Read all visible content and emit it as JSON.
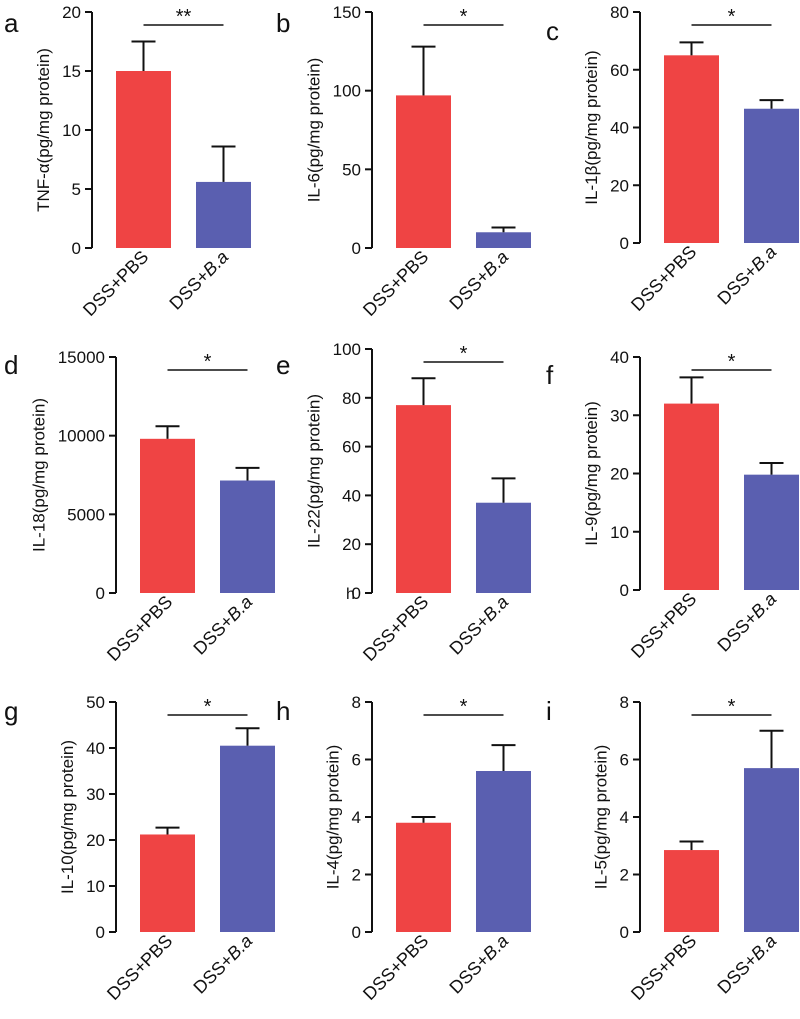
{
  "figure": {
    "bar_colors": {
      "DSS+PBS": "#ef4444",
      "DSS+B.a": "#5a5fb0"
    },
    "stray_labels": [
      {
        "panel": "e",
        "text": "h"
      }
    ]
  },
  "chart_data": [
    {
      "panel": "a",
      "type": "bar",
      "ylabel": "TNF-α(pg/mg protein)",
      "ylim": [
        0,
        20
      ],
      "yticks": [
        0,
        5,
        10,
        15,
        20
      ],
      "categories": [
        "DSS+PBS",
        "DSS+B.a"
      ],
      "values": [
        15.0,
        5.6
      ],
      "errors": [
        2.5,
        3.0
      ],
      "significance": "**"
    },
    {
      "panel": "b",
      "type": "bar",
      "ylabel": "IL-6(pg/mg protein)",
      "ylim": [
        0,
        150
      ],
      "yticks": [
        0,
        50,
        100,
        150
      ],
      "categories": [
        "DSS+PBS",
        "DSS+B.a"
      ],
      "values": [
        97,
        10
      ],
      "errors": [
        31,
        3
      ],
      "significance": "*"
    },
    {
      "panel": "c",
      "type": "bar",
      "ylabel": "IL-1β(pg/mg protein)",
      "ylim": [
        0,
        80
      ],
      "yticks": [
        0,
        20,
        40,
        60,
        80
      ],
      "categories": [
        "DSS+PBS",
        "DSS+B.a"
      ],
      "values": [
        65,
        46.5
      ],
      "errors": [
        4.5,
        3.0
      ],
      "significance": "*"
    },
    {
      "panel": "d",
      "type": "bar",
      "ylabel": "IL-18(pg/mg protein)",
      "ylim": [
        0,
        15000
      ],
      "yticks": [
        0,
        5000,
        10000,
        15000
      ],
      "categories": [
        "DSS+PBS",
        "DSS+B.a"
      ],
      "values": [
        9800,
        7150
      ],
      "errors": [
        800,
        800
      ],
      "significance": "*"
    },
    {
      "panel": "e",
      "type": "bar",
      "ylabel": "IL-22(pg/mg protein)",
      "ylim": [
        0,
        100
      ],
      "yticks": [
        0,
        20,
        40,
        60,
        80,
        100
      ],
      "categories": [
        "DSS+PBS",
        "DSS+B.a"
      ],
      "values": [
        77,
        37
      ],
      "errors": [
        11,
        10
      ],
      "significance": "*"
    },
    {
      "panel": "f",
      "type": "bar",
      "ylabel": "IL-9(pg/mg protein)",
      "ylim": [
        0,
        40
      ],
      "yticks": [
        0,
        10,
        20,
        30,
        40
      ],
      "categories": [
        "DSS+PBS",
        "DSS+B.a"
      ],
      "values": [
        32,
        19.8
      ],
      "errors": [
        4.5,
        2.0
      ],
      "significance": "*"
    },
    {
      "panel": "g",
      "type": "bar",
      "ylabel": "IL-10(pg/mg protein)",
      "ylim": [
        0,
        50
      ],
      "yticks": [
        0,
        10,
        20,
        30,
        40,
        50
      ],
      "categories": [
        "DSS+PBS",
        "DSS+B.a"
      ],
      "values": [
        21.2,
        40.5
      ],
      "errors": [
        1.5,
        3.8
      ],
      "significance": "*"
    },
    {
      "panel": "h",
      "type": "bar",
      "ylabel": "IL-4(pg/mg protein)",
      "ylim": [
        0,
        8
      ],
      "yticks": [
        0,
        2,
        4,
        6,
        8
      ],
      "categories": [
        "DSS+PBS",
        "DSS+B.a"
      ],
      "values": [
        3.8,
        5.6
      ],
      "errors": [
        0.2,
        0.9
      ],
      "significance": "*"
    },
    {
      "panel": "i",
      "type": "bar",
      "ylabel": "IL-5(pg/mg protein)",
      "ylim": [
        0,
        8
      ],
      "yticks": [
        0,
        2,
        4,
        6,
        8
      ],
      "categories": [
        "DSS+PBS",
        "DSS+B.a"
      ],
      "values": [
        2.85,
        5.7
      ],
      "errors": [
        0.3,
        1.3
      ],
      "significance": "*"
    }
  ]
}
